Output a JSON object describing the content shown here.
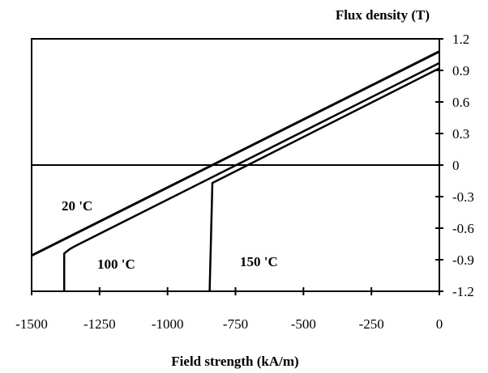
{
  "chart_data": {
    "type": "line",
    "xlabel": "Field strength (kA/m)",
    "ylabel": "Flux density (T)",
    "xlim": [
      -1500,
      0
    ],
    "ylim": [
      -1.2,
      1.2
    ],
    "x_ticks": [
      "-1500",
      "-1250",
      "-1000",
      "-750",
      "-500",
      "-250",
      "0"
    ],
    "x_tick_values": [
      -1500,
      -1250,
      -1000,
      -750,
      -500,
      -250,
      0
    ],
    "y_ticks": [
      "1.2",
      "0.9",
      "0.6",
      "0.3",
      "0",
      "-0.3",
      "-0.6",
      "-0.9",
      "-1.2"
    ],
    "y_tick_values": [
      1.2,
      0.9,
      0.6,
      0.3,
      0,
      -0.3,
      -0.6,
      -0.9,
      -1.2
    ],
    "y_axis_position": "right",
    "grid": false,
    "zero_line": true,
    "series": [
      {
        "name": "20 'C",
        "points": [
          [
            -1500,
            -0.86
          ],
          [
            0,
            1.08
          ]
        ]
      },
      {
        "name": "100 'C",
        "points": [
          [
            -1380,
            -1.2
          ],
          [
            -1380,
            -0.84
          ],
          [
            -1360,
            -0.8
          ],
          [
            -1340,
            -0.77
          ],
          [
            0,
            0.97
          ]
        ]
      },
      {
        "name": "150 'C",
        "points": [
          [
            -845,
            -1.2
          ],
          [
            -835,
            -0.17
          ],
          [
            0,
            0.92
          ]
        ]
      }
    ]
  }
}
